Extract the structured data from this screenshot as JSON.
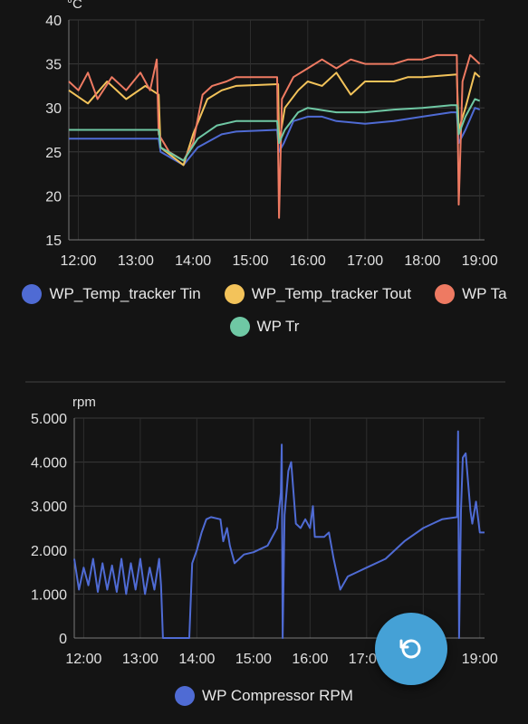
{
  "chart_data": [
    {
      "type": "line",
      "ylabel": "°C",
      "ylim": [
        15,
        40
      ],
      "yticks": [
        15,
        20,
        25,
        30,
        35,
        40
      ],
      "xlim": [
        "11:50",
        "19:05"
      ],
      "xticks": [
        "12:00",
        "13:00",
        "14:00",
        "15:00",
        "16:00",
        "17:00",
        "18:00",
        "19:00"
      ],
      "grid": true,
      "legend": "bottom",
      "series": [
        {
          "name": "WP_Temp_tracker Tin",
          "color": "#4f6bd4",
          "points": [
            [
              "11:50",
              26.5
            ],
            [
              "13:24",
              26.5
            ],
            [
              "13:26",
              25
            ],
            [
              "13:50",
              23.5
            ],
            [
              "14:05",
              25.5
            ],
            [
              "14:30",
              27
            ],
            [
              "14:45",
              27.3
            ],
            [
              "15:28",
              27.5
            ],
            [
              "15:30",
              25
            ],
            [
              "15:35",
              26
            ],
            [
              "15:45",
              28.5
            ],
            [
              "16:00",
              29
            ],
            [
              "16:15",
              29
            ],
            [
              "16:30",
              28.5
            ],
            [
              "17:00",
              28.2
            ],
            [
              "17:30",
              28.5
            ],
            [
              "18:00",
              29
            ],
            [
              "18:30",
              29.5
            ],
            [
              "18:36",
              29.5
            ],
            [
              "18:38",
              26
            ],
            [
              "18:45",
              27.5
            ],
            [
              "18:55",
              30
            ],
            [
              "19:00",
              29.8
            ]
          ]
        },
        {
          "name": "WP_Temp_tracker Tout",
          "color": "#f3c35a",
          "points": [
            [
              "11:50",
              32
            ],
            [
              "12:10",
              30.5
            ],
            [
              "12:30",
              33
            ],
            [
              "12:50",
              31
            ],
            [
              "13:10",
              32.5
            ],
            [
              "13:24",
              31.5
            ],
            [
              "13:26",
              25.5
            ],
            [
              "13:50",
              23.5
            ],
            [
              "14:00",
              27
            ],
            [
              "14:15",
              31
            ],
            [
              "14:30",
              32
            ],
            [
              "14:45",
              32.5
            ],
            [
              "15:29",
              32.7
            ],
            [
              "15:30",
              26
            ],
            [
              "15:36",
              30
            ],
            [
              "15:50",
              32
            ],
            [
              "16:00",
              33
            ],
            [
              "16:15",
              32.5
            ],
            [
              "16:30",
              34
            ],
            [
              "16:45",
              31.5
            ],
            [
              "17:00",
              33
            ],
            [
              "17:30",
              33
            ],
            [
              "17:45",
              33.5
            ],
            [
              "18:00",
              33.5
            ],
            [
              "18:36",
              33.8
            ],
            [
              "18:38",
              27.5
            ],
            [
              "18:45",
              30
            ],
            [
              "18:55",
              34
            ],
            [
              "19:00",
              33.5
            ]
          ]
        },
        {
          "name": "WP Ta",
          "color": "#ee7a62",
          "points": [
            [
              "11:50",
              33
            ],
            [
              "12:00",
              32
            ],
            [
              "12:10",
              34
            ],
            [
              "12:20",
              31
            ],
            [
              "12:35",
              33.5
            ],
            [
              "12:50",
              32
            ],
            [
              "13:05",
              34
            ],
            [
              "13:15",
              32
            ],
            [
              "13:22",
              35.5
            ],
            [
              "13:24",
              27
            ],
            [
              "13:35",
              25
            ],
            [
              "13:50",
              24
            ],
            [
              "14:00",
              26
            ],
            [
              "14:10",
              31.5
            ],
            [
              "14:20",
              32.5
            ],
            [
              "14:35",
              33
            ],
            [
              "14:45",
              33.5
            ],
            [
              "15:28",
              33.5
            ],
            [
              "15:30",
              17.5
            ],
            [
              "15:33",
              31
            ],
            [
              "15:45",
              33.5
            ],
            [
              "16:00",
              34.5
            ],
            [
              "16:15",
              35.5
            ],
            [
              "16:30",
              34.5
            ],
            [
              "16:45",
              35.5
            ],
            [
              "17:00",
              35
            ],
            [
              "17:30",
              35
            ],
            [
              "17:45",
              35.5
            ],
            [
              "18:00",
              35.5
            ],
            [
              "18:15",
              36
            ],
            [
              "18:36",
              36
            ],
            [
              "18:38",
              19
            ],
            [
              "18:42",
              33
            ],
            [
              "18:50",
              36
            ],
            [
              "19:00",
              35
            ]
          ]
        },
        {
          "name": "WP Tr",
          "color": "#6fc8a4",
          "points": [
            [
              "11:50",
              27.5
            ],
            [
              "13:24",
              27.5
            ],
            [
              "13:26",
              25.5
            ],
            [
              "13:50",
              24
            ],
            [
              "14:05",
              26.5
            ],
            [
              "14:25",
              28
            ],
            [
              "14:45",
              28.5
            ],
            [
              "15:28",
              28.5
            ],
            [
              "15:30",
              26
            ],
            [
              "15:36",
              27.5
            ],
            [
              "15:50",
              29.5
            ],
            [
              "16:00",
              30
            ],
            [
              "16:30",
              29.5
            ],
            [
              "17:00",
              29.5
            ],
            [
              "17:30",
              29.8
            ],
            [
              "18:00",
              30
            ],
            [
              "18:30",
              30.3
            ],
            [
              "18:36",
              30.3
            ],
            [
              "18:38",
              27
            ],
            [
              "18:45",
              29
            ],
            [
              "18:55",
              31
            ],
            [
              "19:00",
              30.8
            ]
          ]
        }
      ]
    },
    {
      "type": "line",
      "ylabel": "rpm",
      "ylim": [
        0,
        5000
      ],
      "yticks": [
        0,
        1000,
        2000,
        3000,
        4000,
        5000
      ],
      "ytick_labels": [
        "0",
        "1.000",
        "2.000",
        "3.000",
        "4.000",
        "5.000"
      ],
      "xlim": [
        "11:50",
        "19:05"
      ],
      "xticks": [
        "12:00",
        "13:00",
        "14:00",
        "15:00",
        "16:00",
        "17:00",
        "18:00",
        "19:00"
      ],
      "grid": true,
      "legend": "bottom",
      "series": [
        {
          "name": "WP Compressor RPM",
          "color": "#4f6bd4",
          "points": [
            [
              "11:50",
              1800
            ],
            [
              "11:55",
              1100
            ],
            [
              "12:00",
              1600
            ],
            [
              "12:05",
              1200
            ],
            [
              "12:10",
              1800
            ],
            [
              "12:15",
              1050
            ],
            [
              "12:20",
              1700
            ],
            [
              "12:25",
              1100
            ],
            [
              "12:30",
              1650
            ],
            [
              "12:35",
              1050
            ],
            [
              "12:40",
              1800
            ],
            [
              "12:45",
              1000
            ],
            [
              "12:50",
              1700
            ],
            [
              "12:55",
              1100
            ],
            [
              "13:00",
              1800
            ],
            [
              "13:05",
              1000
            ],
            [
              "13:10",
              1600
            ],
            [
              "13:15",
              1100
            ],
            [
              "13:20",
              1800
            ],
            [
              "13:22",
              1200
            ],
            [
              "13:24",
              0
            ],
            [
              "13:52",
              0
            ],
            [
              "13:55",
              1700
            ],
            [
              "14:00",
              2000
            ],
            [
              "14:05",
              2400
            ],
            [
              "14:10",
              2700
            ],
            [
              "14:15",
              2750
            ],
            [
              "14:25",
              2700
            ],
            [
              "14:28",
              2200
            ],
            [
              "14:32",
              2500
            ],
            [
              "14:35",
              2100
            ],
            [
              "14:40",
              1700
            ],
            [
              "14:50",
              1900
            ],
            [
              "15:00",
              1950
            ],
            [
              "15:15",
              2100
            ],
            [
              "15:25",
              2500
            ],
            [
              "15:29",
              3300
            ],
            [
              "15:30",
              4400
            ],
            [
              "15:31",
              0
            ],
            [
              "15:33",
              2800
            ],
            [
              "15:37",
              3800
            ],
            [
              "15:40",
              4000
            ],
            [
              "15:45",
              2600
            ],
            [
              "15:50",
              2500
            ],
            [
              "15:55",
              2700
            ],
            [
              "16:00",
              2500
            ],
            [
              "16:03",
              3000
            ],
            [
              "16:05",
              2300
            ],
            [
              "16:15",
              2300
            ],
            [
              "16:20",
              2400
            ],
            [
              "16:25",
              1800
            ],
            [
              "16:32",
              1100
            ],
            [
              "16:40",
              1400
            ],
            [
              "16:50",
              1500
            ],
            [
              "17:00",
              1600
            ],
            [
              "17:20",
              1800
            ],
            [
              "17:40",
              2200
            ],
            [
              "18:00",
              2500
            ],
            [
              "18:10",
              2600
            ],
            [
              "18:20",
              2700
            ],
            [
              "18:36",
              2750
            ],
            [
              "18:37",
              4700
            ],
            [
              "18:38",
              0
            ],
            [
              "18:40",
              2900
            ],
            [
              "18:42",
              4100
            ],
            [
              "18:45",
              4200
            ],
            [
              "18:50",
              2900
            ],
            [
              "18:52",
              2600
            ],
            [
              "18:56",
              3100
            ],
            [
              "19:00",
              2400
            ],
            [
              "19:05",
              2400
            ]
          ]
        }
      ]
    }
  ],
  "fab": {
    "icon": "refresh-icon",
    "color": "#45a1d6"
  }
}
